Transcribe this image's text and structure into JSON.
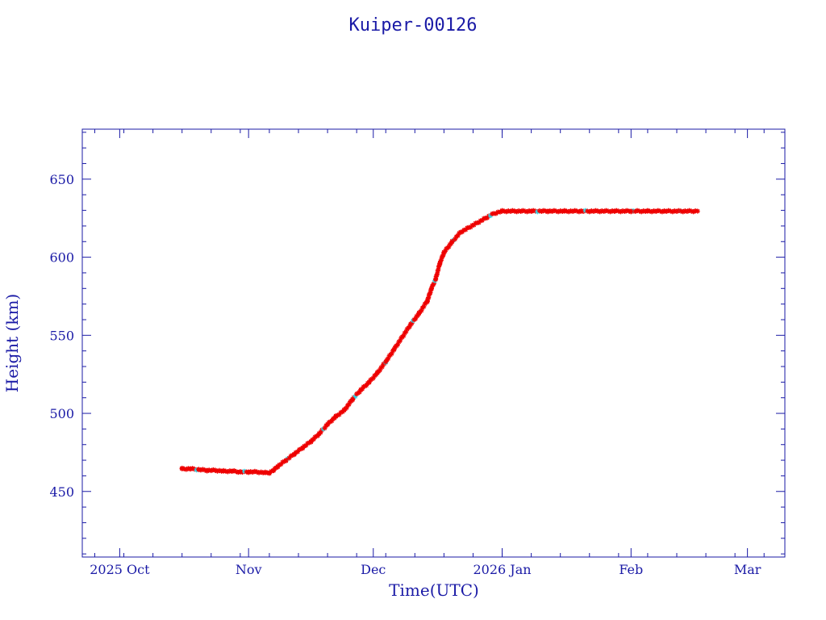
{
  "chart_data": {
    "type": "scatter",
    "title": "Kuiper-00126",
    "xlabel": "Time(UTC)",
    "ylabel": "Height (km)",
    "xlim": [
      "2025-09-22",
      "2026-03-10"
    ],
    "ylim": [
      408,
      682
    ],
    "x_ticks": [
      {
        "date": "2025-10-01",
        "label": "2025 Oct"
      },
      {
        "date": "2025-11-01",
        "label": "Nov"
      },
      {
        "date": "2025-12-01",
        "label": "Dec"
      },
      {
        "date": "2026-01-01",
        "label": "2026 Jan"
      },
      {
        "date": "2026-02-01",
        "label": "Feb"
      },
      {
        "date": "2026-03-01",
        "label": "Mar"
      }
    ],
    "y_ticks": [
      450,
      500,
      550,
      600,
      650
    ],
    "colors": {
      "frame": "#1a1aa6",
      "points": "#ee0000",
      "alt_points": "#33d6e6",
      "line": "#000000"
    },
    "series": [
      {
        "x": [
          "2025-10-16",
          "2025-10-18",
          "2025-10-20",
          "2025-10-22",
          "2025-10-24",
          "2025-10-26",
          "2025-10-28",
          "2025-10-30",
          "2025-11-01",
          "2025-11-03",
          "2025-11-05",
          "2025-11-06",
          "2025-11-07",
          "2025-11-08",
          "2025-11-10",
          "2025-11-12",
          "2025-11-14",
          "2025-11-16",
          "2025-11-18",
          "2025-11-20",
          "2025-11-22",
          "2025-11-24",
          "2025-11-26",
          "2025-11-28",
          "2025-11-30",
          "2025-12-02",
          "2025-12-04",
          "2025-12-06",
          "2025-12-08",
          "2025-12-10",
          "2025-12-12",
          "2025-12-14",
          "2025-12-15",
          "2025-12-16",
          "2025-12-17",
          "2025-12-18",
          "2025-12-20",
          "2025-12-22",
          "2025-12-24",
          "2025-12-26",
          "2025-12-28",
          "2025-12-30",
          "2026-01-01",
          "2026-01-04",
          "2026-01-08",
          "2026-01-12",
          "2026-01-16",
          "2026-01-20",
          "2026-01-24",
          "2026-01-28",
          "2026-02-01",
          "2026-02-05",
          "2026-02-09",
          "2026-02-13",
          "2026-02-17"
        ],
        "y": [
          464.5,
          464.5,
          464,
          463.5,
          463.5,
          463,
          463,
          462.5,
          462.5,
          462.5,
          462,
          462,
          463.5,
          466,
          470,
          474,
          478,
          482,
          487,
          493,
          498,
          502,
          509,
          515,
          520,
          526,
          533,
          541,
          549,
          557,
          564,
          572,
          580,
          586,
          596,
          603,
          610,
          616,
          619,
          622,
          625,
          628,
          629.5,
          629.5,
          629.5,
          629.5,
          629.5,
          629.5,
          629.5,
          629.5,
          629.5,
          629.5,
          629.5,
          629.5,
          629.5
        ]
      }
    ]
  }
}
